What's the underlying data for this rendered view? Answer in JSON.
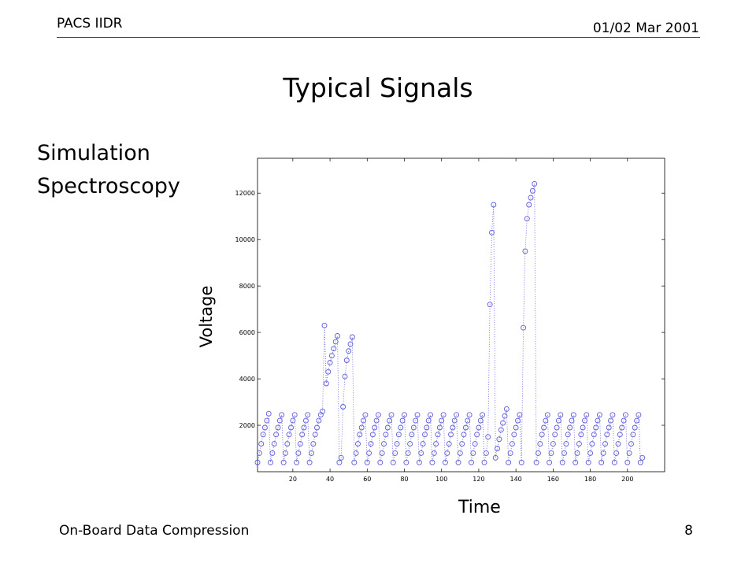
{
  "header": {
    "left": "PACS IIDR",
    "right": "01/02 Mar 2001"
  },
  "title": "Typical Signals",
  "bullets": [
    "Simulation",
    "Spectroscopy"
  ],
  "footer": {
    "left": "On-Board Data Compression",
    "page": "8"
  },
  "colors": {
    "marker": "#5a5ad8",
    "rule": "#3a3aa0"
  },
  "chart_data": {
    "type": "scatter",
    "xlabel": "Time",
    "ylabel": "Voltage",
    "xlim": [
      1,
      220
    ],
    "ylim": [
      0,
      13500
    ],
    "xticks": [
      20,
      40,
      60,
      80,
      100,
      120,
      140,
      160,
      180,
      200
    ],
    "yticks": [
      2000,
      4000,
      6000,
      8000,
      10000,
      12000
    ],
    "grid": false,
    "marker": "circle",
    "connect": "dotted",
    "series": [
      {
        "values": [
          400,
          800,
          1200,
          1600,
          1900,
          2200,
          2500,
          400,
          800,
          1200,
          1600,
          1900,
          2200,
          2450,
          400,
          800,
          1200,
          1600,
          1900,
          2200,
          2450,
          400,
          800,
          1200,
          1600,
          1900,
          2200,
          2450,
          400,
          800,
          1200,
          1600,
          1900,
          2200,
          2450,
          2600,
          6300,
          3800,
          4300,
          4700,
          5000,
          5300,
          5600,
          5850,
          400,
          600,
          2800,
          4100,
          4800,
          5200,
          5500,
          5800,
          400,
          800,
          1200,
          1600,
          1900,
          2200,
          2450,
          400,
          800,
          1200,
          1600,
          1900,
          2200,
          2450,
          400,
          800,
          1200,
          1600,
          1900,
          2200,
          2450,
          400,
          800,
          1200,
          1600,
          1900,
          2200,
          2450,
          400,
          800,
          1200,
          1600,
          1900,
          2200,
          2450,
          400,
          800,
          1200,
          1600,
          1900,
          2200,
          2450,
          400,
          800,
          1200,
          1600,
          1900,
          2200,
          2450,
          400,
          800,
          1200,
          1600,
          1900,
          2200,
          2450,
          400,
          800,
          1200,
          1600,
          1900,
          2200,
          2450,
          400,
          800,
          1200,
          1600,
          1900,
          2200,
          2450,
          400,
          800,
          1500,
          7200,
          10300,
          11500,
          600,
          1000,
          1400,
          1800,
          2100,
          2400,
          2700,
          400,
          800,
          1200,
          1600,
          1900,
          2200,
          2450,
          400,
          6200,
          9500,
          10900,
          11500,
          11800,
          12100,
          12400,
          400,
          800,
          1200,
          1600,
          1900,
          2200,
          2450,
          400,
          800,
          1200,
          1600,
          1900,
          2200,
          2450,
          400,
          800,
          1200,
          1600,
          1900,
          2200,
          2450,
          400,
          800,
          1200,
          1600,
          1900,
          2200,
          2450,
          400,
          800,
          1200,
          1600,
          1900,
          2200,
          2450,
          400,
          800,
          1200,
          1600,
          1900,
          2200,
          2450,
          400,
          800,
          1200,
          1600,
          1900,
          2200,
          2450,
          400,
          800,
          1200,
          1600,
          1900,
          2200,
          2450,
          400,
          600
        ]
      }
    ]
  }
}
